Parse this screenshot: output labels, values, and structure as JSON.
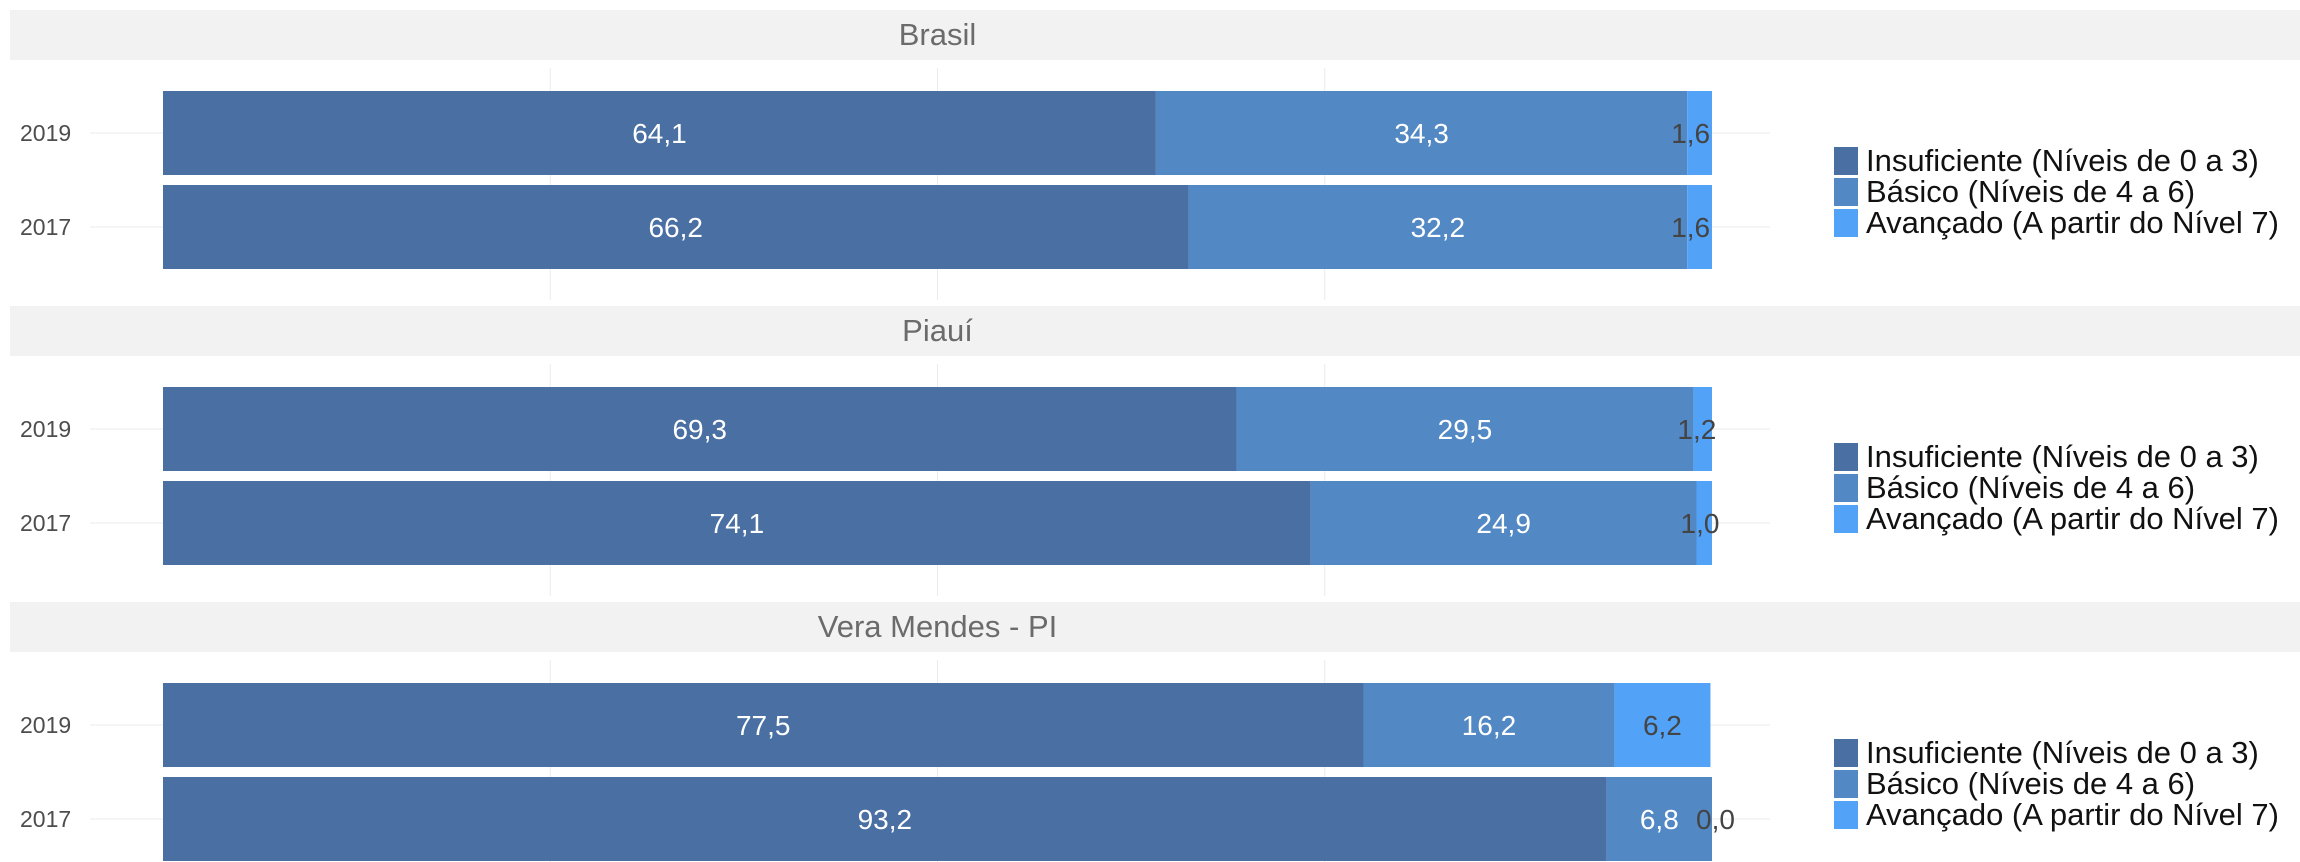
{
  "chart_data": {
    "type": "bar",
    "orientation": "horizontal",
    "stacked": true,
    "xlim": [
      0,
      100
    ],
    "grid": true,
    "legend_position": "right",
    "colors": {
      "Insuficiente (Níveis de 0 a 3)": "#4a6fa3",
      "Básico (Níveis de 4 a 6)": "#5288c4",
      "Avançado (A partir do Nível 7)": "#52a2f7",
      "strip_background": "#f2f2f2"
    },
    "legend": [
      "Insuficiente (Níveis de 0 a 3)",
      "Básico (Níveis de 4 a 6)",
      "Avançado (A partir do Nível 7)"
    ],
    "panels": [
      {
        "title": "Brasil",
        "rows": [
          {
            "label": "2019",
            "values": [
              64.1,
              34.3,
              1.6
            ],
            "labels": [
              "64,1",
              "34,3",
              "1,6"
            ]
          },
          {
            "label": "2017",
            "values": [
              66.2,
              32.2,
              1.6
            ],
            "labels": [
              "66,2",
              "32,2",
              "1,6"
            ]
          }
        ]
      },
      {
        "title": "Piauí",
        "rows": [
          {
            "label": "2019",
            "values": [
              69.3,
              29.5,
              1.2
            ],
            "labels": [
              "69,3",
              "29,5",
              "1,2"
            ]
          },
          {
            "label": "2017",
            "values": [
              74.1,
              24.9,
              1.0
            ],
            "labels": [
              "74,1",
              "24,9",
              "1,0"
            ]
          }
        ]
      },
      {
        "title": "Vera Mendes - PI",
        "rows": [
          {
            "label": "2019",
            "values": [
              77.5,
              16.2,
              6.2
            ],
            "labels": [
              "77,5",
              "16,2",
              "6,2"
            ]
          },
          {
            "label": "2017",
            "values": [
              93.2,
              6.8,
              0.0
            ],
            "labels": [
              "93,2",
              "6,8",
              "0,0"
            ]
          }
        ]
      }
    ]
  }
}
